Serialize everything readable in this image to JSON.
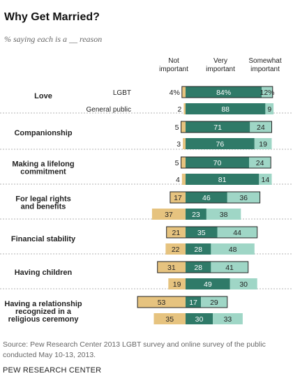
{
  "title": "Why Get Married?",
  "subtitle": "% saying each is a __ reason",
  "headers": [
    "Not important",
    "Very important",
    "Somewhat important"
  ],
  "source": "Source: Pew Research Center 2013 LGBT survey and online survey of the public conducted May 10-13, 2013.",
  "brand": "PEW RESEARCH CENTER",
  "colors": {
    "not_important": "#e6c37f",
    "very_important": "#2f7a68",
    "somewhat_important": "#9fd6c6",
    "lgbt_outline": "#222222"
  },
  "chart_data": {
    "type": "bar",
    "stacked": "diverging",
    "categories": [
      "Love",
      "Companionship",
      "Making a lifelong commitment",
      "For legal rights and benefits",
      "Financial stability",
      "Having children",
      "Having a relationship recognized in a religious ceremony"
    ],
    "groups": [
      "LGBT",
      "General public"
    ],
    "series": [
      {
        "name": "Not important",
        "LGBT": [
          4,
          5,
          5,
          17,
          21,
          31,
          53
        ],
        "General public": [
          2,
          3,
          4,
          37,
          22,
          19,
          35
        ]
      },
      {
        "name": "Very important",
        "LGBT": [
          84,
          71,
          70,
          46,
          35,
          28,
          17
        ],
        "General public": [
          88,
          76,
          81,
          23,
          28,
          49,
          30
        ]
      },
      {
        "name": "Somewhat important",
        "LGBT": [
          12,
          24,
          24,
          36,
          44,
          41,
          29
        ],
        "General public": [
          9,
          19,
          14,
          38,
          48,
          30,
          33
        ]
      }
    ],
    "value_labels": {
      "LGBT": [
        [
          "4%",
          "84%",
          "12%"
        ],
        [
          "5",
          "71",
          "24"
        ],
        [
          "5",
          "70",
          "24"
        ],
        [
          "17",
          "46",
          "36"
        ],
        [
          "21",
          "35",
          "44"
        ],
        [
          "31",
          "28",
          "41"
        ],
        [
          "53",
          "17",
          "29"
        ]
      ],
      "General public": [
        [
          "2",
          "88",
          "9"
        ],
        [
          "3",
          "76",
          "19"
        ],
        [
          "4",
          "81",
          "14"
        ],
        [
          "37",
          "23",
          "38"
        ],
        [
          "22",
          "28",
          "48"
        ],
        [
          "19",
          "49",
          "30"
        ],
        [
          "35",
          "30",
          "33"
        ]
      ]
    },
    "grid": false,
    "legend": "top"
  }
}
